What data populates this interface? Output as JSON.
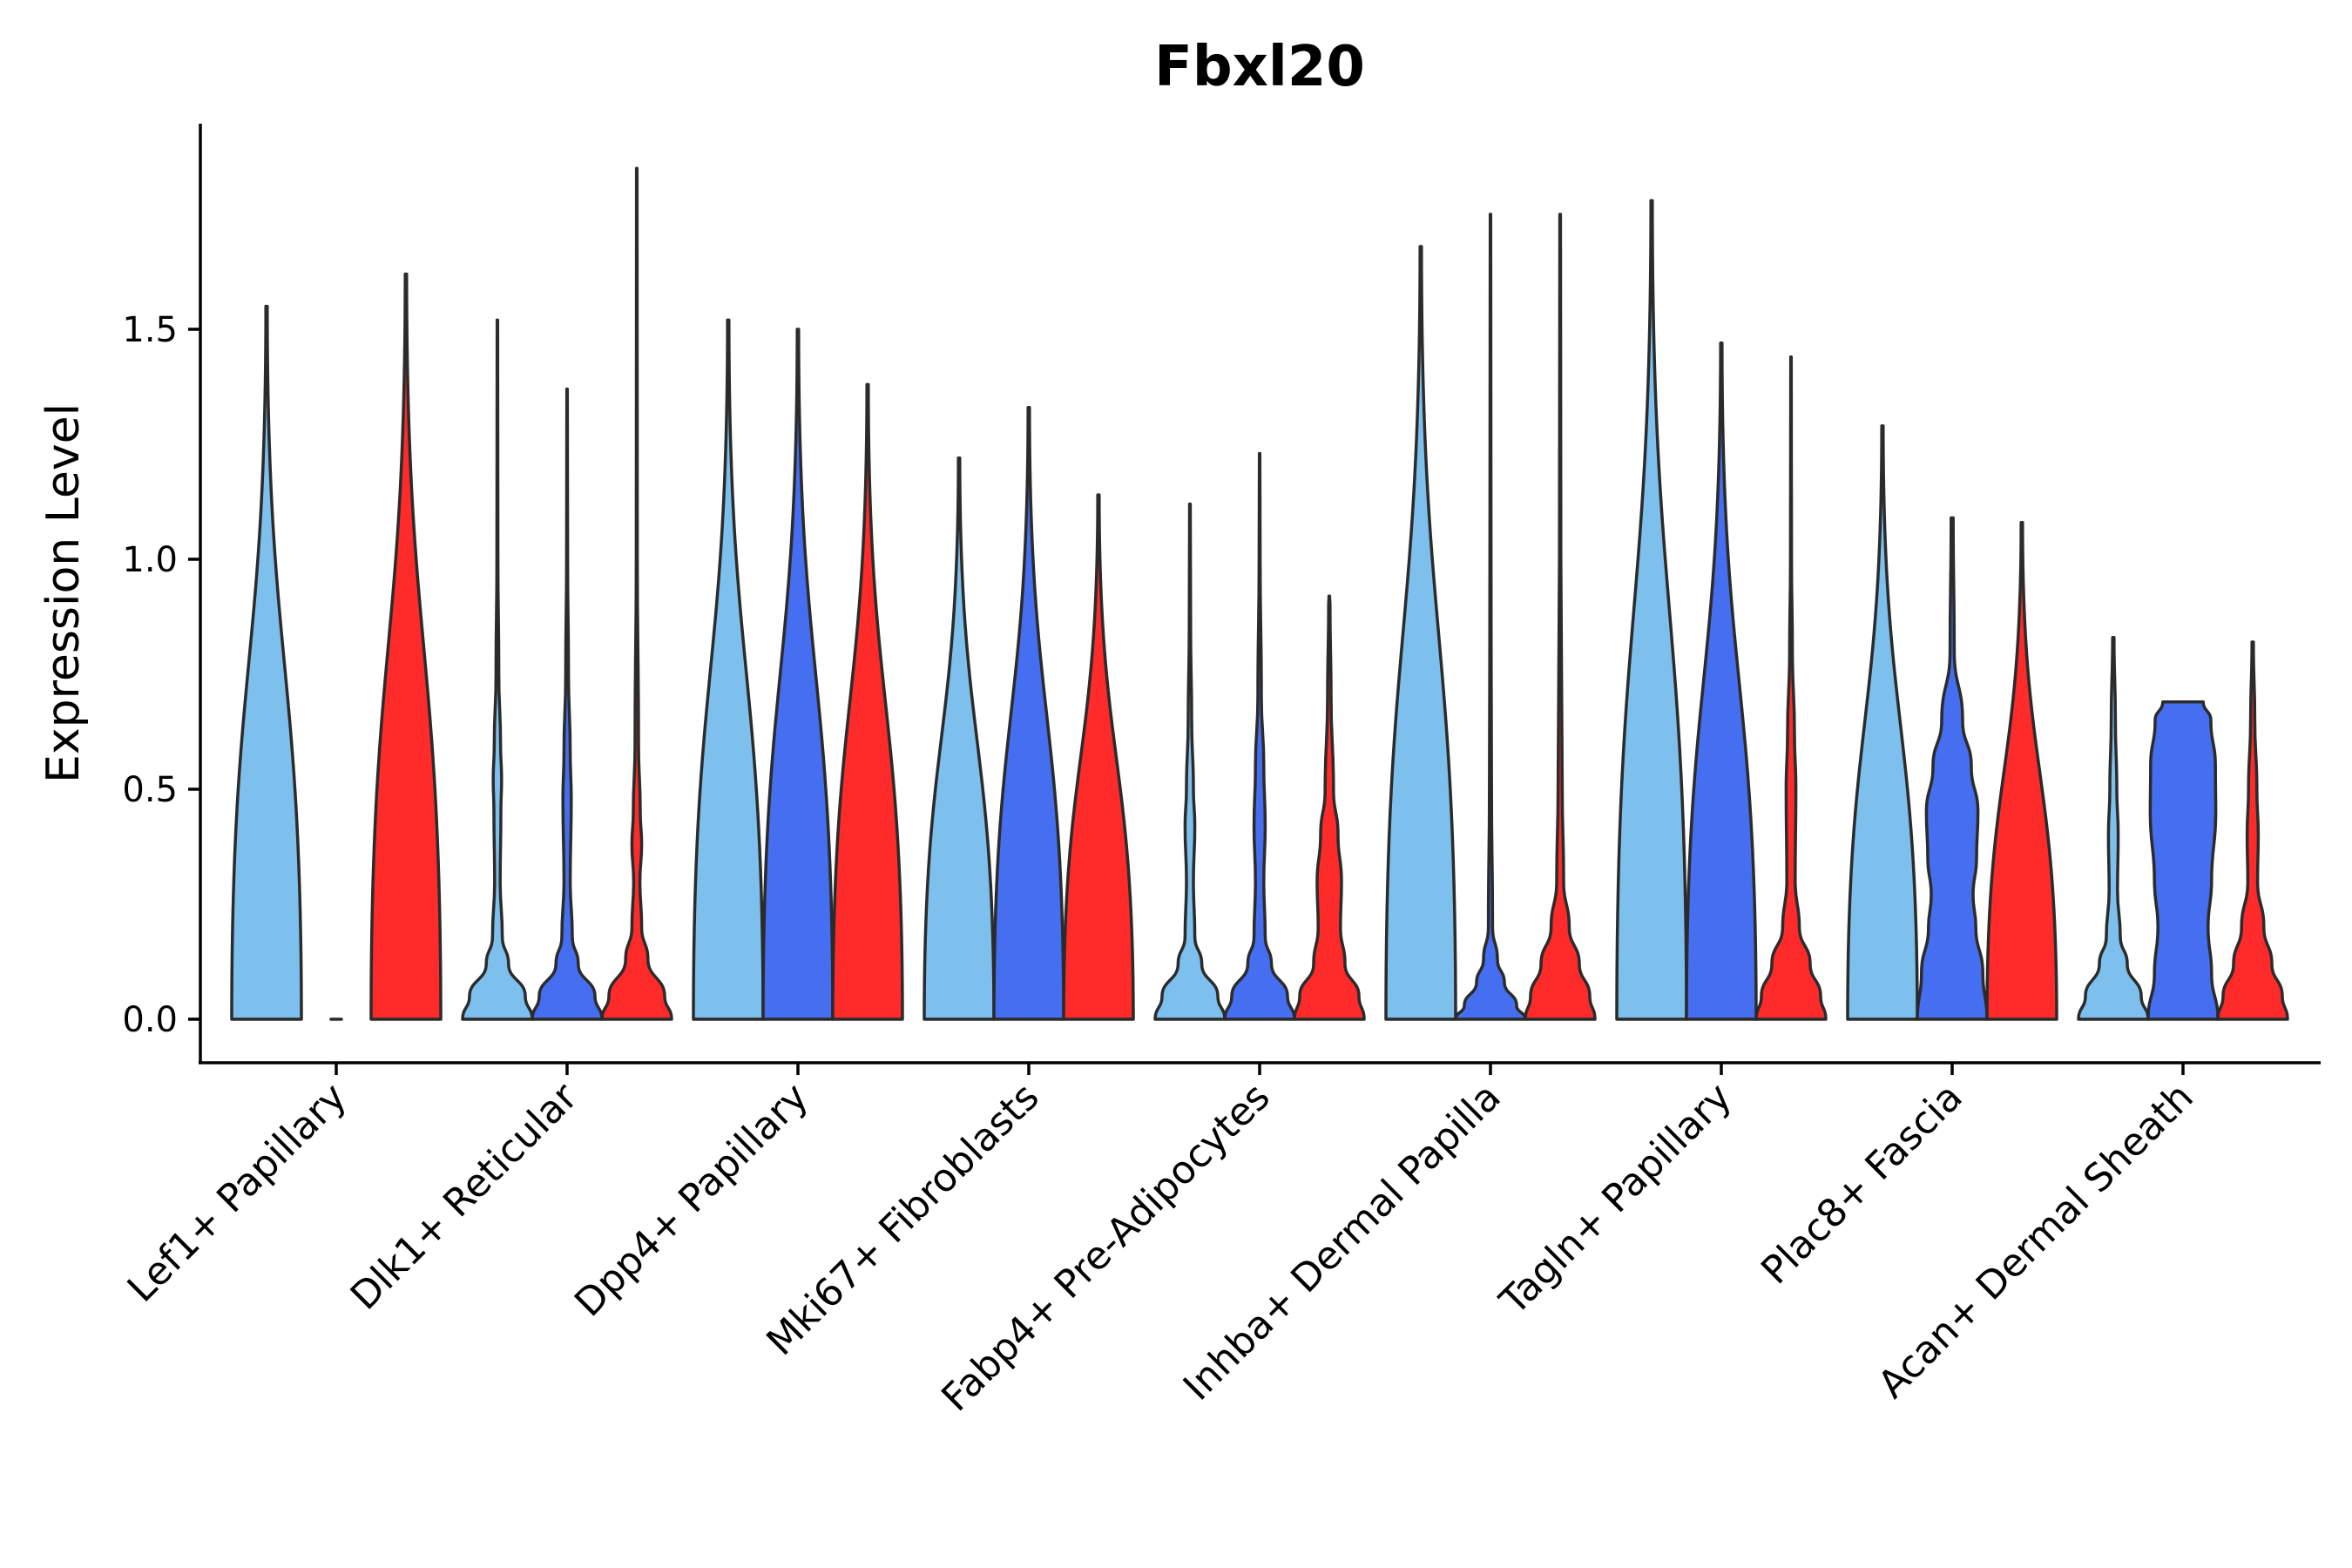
{
  "chart_data": {
    "type": "violin",
    "title": "Fbxl20",
    "ylabel": "Expression Level",
    "xlabel": "",
    "ylim": [
      -0.09,
      1.94
    ],
    "yticks": [
      "0.0",
      "0.5",
      "1.0",
      "1.5"
    ],
    "grid": false,
    "legend": "none",
    "group_colors": [
      "#7dc0ee",
      "#456ff0",
      "#ff2a2a"
    ],
    "categories": [
      "Lef1+ Papillary",
      "Dlk1+ Reticular",
      "Dpp4+ Papillary",
      "Mki67+ Fibroblasts",
      "Fabp4+ Pre-Adipocytes",
      "Inhba+ Dermal Papilla",
      "Tagln+ Papillary",
      "Plac8+ Fascia",
      "Acan+ Dermal Sheath"
    ],
    "violins": [
      [
        {
          "max": 1.55,
          "profile": [
            [
              0,
              1
            ]
          ]
        },
        {
          "max": 0.0,
          "profile": [
            [
              0,
              0.15
            ]
          ]
        },
        {
          "max": 1.62,
          "profile": [
            [
              0,
              1
            ]
          ]
        }
      ],
      [
        {
          "max": 1.52,
          "profile": [
            [
              0,
              1
            ],
            [
              0.05,
              0.8
            ],
            [
              0.12,
              0.32
            ],
            [
              0.18,
              0.14
            ],
            [
              0.3,
              0.08
            ],
            [
              0.45,
              0.1
            ],
            [
              0.52,
              0.12
            ],
            [
              0.6,
              0.09
            ],
            [
              0.75,
              0.04
            ],
            [
              1.0,
              0.015
            ]
          ]
        },
        {
          "max": 1.37,
          "profile": [
            [
              0,
              1
            ],
            [
              0.05,
              0.8
            ],
            [
              0.12,
              0.32
            ],
            [
              0.18,
              0.15
            ],
            [
              0.3,
              0.09
            ],
            [
              0.48,
              0.12
            ],
            [
              0.58,
              0.09
            ],
            [
              0.75,
              0.04
            ],
            [
              1.0,
              0.015
            ]
          ]
        },
        {
          "max": 1.85,
          "profile": [
            [
              0,
              1
            ],
            [
              0.05,
              0.8
            ],
            [
              0.13,
              0.32
            ],
            [
              0.2,
              0.14
            ],
            [
              0.3,
              0.09
            ],
            [
              0.38,
              0.14
            ],
            [
              0.45,
              0.1
            ],
            [
              0.6,
              0.05
            ],
            [
              1.0,
              0.015
            ]
          ]
        }
      ],
      [
        {
          "max": 1.52,
          "profile": [
            [
              0,
              1
            ]
          ]
        },
        {
          "max": 1.5,
          "profile": [
            [
              0,
              1
            ]
          ]
        },
        {
          "max": 1.38,
          "profile": [
            [
              0,
              1
            ]
          ]
        }
      ],
      [
        {
          "max": 1.22,
          "profile": [
            [
              0,
              1
            ]
          ]
        },
        {
          "max": 1.33,
          "profile": [
            [
              0,
              1
            ]
          ]
        },
        {
          "max": 1.14,
          "profile": [
            [
              0,
              1
            ]
          ]
        }
      ],
      [
        {
          "max": 1.12,
          "profile": [
            [
              0,
              1
            ],
            [
              0.05,
              0.8
            ],
            [
              0.12,
              0.34
            ],
            [
              0.18,
              0.14
            ],
            [
              0.3,
              0.1
            ],
            [
              0.42,
              0.14
            ],
            [
              0.5,
              0.1
            ],
            [
              0.65,
              0.05
            ],
            [
              0.85,
              0.02
            ]
          ]
        },
        {
          "max": 1.23,
          "profile": [
            [
              0,
              1
            ],
            [
              0.05,
              0.8
            ],
            [
              0.12,
              0.34
            ],
            [
              0.18,
              0.16
            ],
            [
              0.3,
              0.12
            ],
            [
              0.42,
              0.16
            ],
            [
              0.55,
              0.12
            ],
            [
              0.7,
              0.05
            ],
            [
              1.0,
              0.015
            ]
          ]
        },
        {
          "max": 0.92,
          "profile": [
            [
              0,
              1
            ],
            [
              0.05,
              0.85
            ],
            [
              0.12,
              0.45
            ],
            [
              0.2,
              0.32
            ],
            [
              0.3,
              0.35
            ],
            [
              0.4,
              0.25
            ],
            [
              0.5,
              0.12
            ],
            [
              0.7,
              0.05
            ],
            [
              0.9,
              0.02
            ]
          ]
        }
      ],
      [
        {
          "max": 1.68,
          "profile": [
            [
              0,
              1
            ]
          ]
        },
        {
          "max": 1.75,
          "profile": [
            [
              0,
              1
            ],
            [
              0.03,
              0.75
            ],
            [
              0.08,
              0.4
            ],
            [
              0.13,
              0.2
            ],
            [
              0.2,
              0.06
            ],
            [
              0.5,
              0.03
            ],
            [
              0.8,
              0.02
            ],
            [
              1.1,
              0.015
            ]
          ]
        },
        {
          "max": 1.75,
          "profile": [
            [
              0,
              1
            ],
            [
              0.05,
              0.85
            ],
            [
              0.12,
              0.55
            ],
            [
              0.2,
              0.26
            ],
            [
              0.3,
              0.1
            ],
            [
              0.5,
              0.06
            ],
            [
              0.75,
              0.04
            ],
            [
              1.0,
              0.02
            ]
          ]
        }
      ],
      [
        {
          "max": 1.78,
          "profile": [
            [
              0,
              1
            ]
          ]
        },
        {
          "max": 1.47,
          "profile": [
            [
              0,
              1
            ]
          ]
        },
        {
          "max": 1.44,
          "profile": [
            [
              0,
              1
            ],
            [
              0.05,
              0.85
            ],
            [
              0.12,
              0.55
            ],
            [
              0.2,
              0.24
            ],
            [
              0.3,
              0.12
            ],
            [
              0.5,
              0.14
            ],
            [
              0.62,
              0.1
            ],
            [
              0.8,
              0.04
            ],
            [
              1.0,
              0.015
            ]
          ]
        }
      ],
      [
        {
          "max": 1.29,
          "profile": [
            [
              0,
              1
            ]
          ]
        },
        {
          "max": 1.09,
          "profile": [
            [
              0,
              1
            ],
            [
              0.1,
              0.88
            ],
            [
              0.2,
              0.68
            ],
            [
              0.27,
              0.6
            ],
            [
              0.35,
              0.7
            ],
            [
              0.45,
              0.74
            ],
            [
              0.55,
              0.55
            ],
            [
              0.65,
              0.3
            ],
            [
              0.8,
              0.06
            ],
            [
              1.09,
              0.03
            ]
          ]
        },
        {
          "max": 1.08,
          "profile": [
            [
              0,
              1
            ]
          ]
        }
      ],
      [
        {
          "max": 0.83,
          "profile": [
            [
              0,
              1
            ],
            [
              0.05,
              0.8
            ],
            [
              0.12,
              0.4
            ],
            [
              0.18,
              0.2
            ],
            [
              0.28,
              0.12
            ],
            [
              0.4,
              0.14
            ],
            [
              0.5,
              0.1
            ],
            [
              0.65,
              0.06
            ],
            [
              0.83,
              0.02
            ]
          ]
        },
        {
          "max": 0.69,
          "profile": [
            [
              0,
              1
            ],
            [
              0.1,
              0.82
            ],
            [
              0.2,
              0.72
            ],
            [
              0.3,
              0.82
            ],
            [
              0.45,
              0.94
            ],
            [
              0.55,
              0.93
            ],
            [
              0.65,
              0.8
            ],
            [
              0.69,
              0.58
            ]
          ]
        },
        {
          "max": 0.82,
          "profile": [
            [
              0,
              1
            ],
            [
              0.05,
              0.85
            ],
            [
              0.12,
              0.55
            ],
            [
              0.2,
              0.32
            ],
            [
              0.3,
              0.14
            ],
            [
              0.4,
              0.16
            ],
            [
              0.5,
              0.12
            ],
            [
              0.65,
              0.06
            ],
            [
              0.82,
              0.02
            ]
          ]
        }
      ]
    ]
  }
}
